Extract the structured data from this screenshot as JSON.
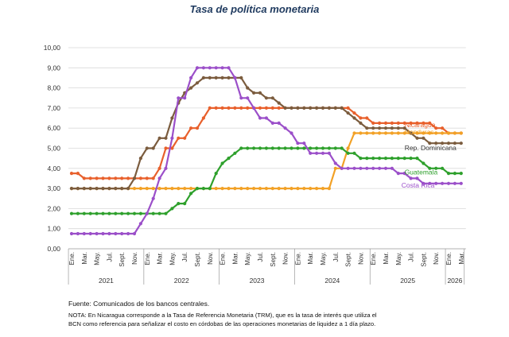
{
  "header": {
    "title": "Tasa de política monetaria"
  },
  "footer": {
    "source": "Fuente: Comunicados de los bancos centrales.",
    "note": "NOTA: En Nicaragua corresponde a la Tasa de Referencia Monetaria (TRM), que es la tasa de interés que utiliza el BCN como referencia para señalizar el costo en córdobas de las operaciones monetarias de liquidez a 1 día plazo."
  },
  "chart_data": {
    "type": "line",
    "title": "Tasa de política monetaria",
    "ylim": [
      0,
      10
    ],
    "y_ticks": [
      "0,00",
      "1,00",
      "2,00",
      "3,00",
      "4,00",
      "5,00",
      "6,00",
      "7,00",
      "8,00",
      "9,00",
      "10,00"
    ],
    "x_start": "2021-01",
    "x_end": "2026-03",
    "month_ticks": [
      "Ene.",
      "Mar.",
      "May.",
      "Jul.",
      "Sept.",
      "Nov."
    ],
    "month_tick_offsets": [
      0,
      2,
      4,
      6,
      8,
      10
    ],
    "years": [
      "2021",
      "2022",
      "2023",
      "2024",
      "2025",
      "2026"
    ],
    "grid": "horizontal",
    "series": [
      {
        "name": "Nicaragua",
        "color": "#e8602c",
        "label_pos": [
          53,
          6.05
        ],
        "changes": [
          [
            "2021-01",
            3.75
          ],
          [
            "2021-03",
            3.5
          ],
          [
            "2022-03",
            4.0
          ],
          [
            "2022-04",
            5.0
          ],
          [
            "2022-06",
            5.5
          ],
          [
            "2022-08",
            6.0
          ],
          [
            "2022-10",
            6.5
          ],
          [
            "2022-11",
            7.0
          ],
          [
            "2024-10",
            6.75
          ],
          [
            "2024-11",
            6.5
          ],
          [
            "2025-01",
            6.25
          ],
          [
            "2025-11",
            6.0
          ],
          [
            "2026-01",
            5.75
          ]
        ]
      },
      {
        "name": "Honduras",
        "color": "#f2a126",
        "label_pos": [
          53,
          5.7
        ],
        "changes": [
          [
            "2021-01",
            3.0
          ],
          [
            "2024-07",
            4.0
          ],
          [
            "2024-09",
            5.0
          ],
          [
            "2024-10",
            5.75
          ]
        ]
      },
      {
        "name": "Rep. Dominicana",
        "color": "#7b5c3e",
        "label_pos": [
          53,
          4.9
        ],
        "changes": [
          [
            "2021-01",
            3.0
          ],
          [
            "2021-11",
            3.5
          ],
          [
            "2021-12",
            4.5
          ],
          [
            "2022-01",
            5.0
          ],
          [
            "2022-03",
            5.5
          ],
          [
            "2022-05",
            6.5
          ],
          [
            "2022-06",
            7.25
          ],
          [
            "2022-07",
            7.75
          ],
          [
            "2022-08",
            8.0
          ],
          [
            "2022-09",
            8.25
          ],
          [
            "2022-10",
            8.5
          ],
          [
            "2023-05",
            8.0
          ],
          [
            "2023-06",
            7.75
          ],
          [
            "2023-08",
            7.5
          ],
          [
            "2023-10",
            7.25
          ],
          [
            "2023-11",
            7.0
          ],
          [
            "2024-09",
            6.75
          ],
          [
            "2024-10",
            6.5
          ],
          [
            "2024-11",
            6.25
          ],
          [
            "2024-12",
            6.0
          ],
          [
            "2025-07",
            5.75
          ],
          [
            "2025-08",
            5.5
          ],
          [
            "2025-10",
            5.25
          ]
        ]
      },
      {
        "name": "Guatemala",
        "color": "#2ea02c",
        "label_pos": [
          53,
          3.7
        ],
        "changes": [
          [
            "2021-01",
            1.75
          ],
          [
            "2022-05",
            2.0
          ],
          [
            "2022-06",
            2.25
          ],
          [
            "2022-08",
            2.75
          ],
          [
            "2022-09",
            3.0
          ],
          [
            "2022-12",
            3.75
          ],
          [
            "2023-01",
            4.25
          ],
          [
            "2023-02",
            4.5
          ],
          [
            "2023-03",
            4.75
          ],
          [
            "2023-04",
            5.0
          ],
          [
            "2024-09",
            4.75
          ],
          [
            "2024-11",
            4.5
          ],
          [
            "2025-09",
            4.25
          ],
          [
            "2025-10",
            4.0
          ],
          [
            "2026-01",
            3.75
          ]
        ]
      },
      {
        "name": "Costa Rica",
        "color": "#9b4fc9",
        "label_pos": [
          52.5,
          3.05
        ],
        "changes": [
          [
            "2021-01",
            0.75
          ],
          [
            "2021-12",
            1.25
          ],
          [
            "2022-01",
            1.75
          ],
          [
            "2022-02",
            2.5
          ],
          [
            "2022-03",
            3.5
          ],
          [
            "2022-04",
            4.0
          ],
          [
            "2022-05",
            5.5
          ],
          [
            "2022-06",
            7.5
          ],
          [
            "2022-08",
            8.5
          ],
          [
            "2022-09",
            9.0
          ],
          [
            "2023-03",
            8.5
          ],
          [
            "2023-04",
            7.5
          ],
          [
            "2023-06",
            7.0
          ],
          [
            "2023-07",
            6.5
          ],
          [
            "2023-09",
            6.25
          ],
          [
            "2023-11",
            6.0
          ],
          [
            "2023-12",
            5.75
          ],
          [
            "2024-01",
            5.25
          ],
          [
            "2024-03",
            4.75
          ],
          [
            "2024-07",
            4.25
          ],
          [
            "2024-08",
            4.0
          ],
          [
            "2025-05",
            3.75
          ],
          [
            "2025-07",
            3.5
          ],
          [
            "2025-09",
            3.25
          ]
        ]
      }
    ]
  }
}
